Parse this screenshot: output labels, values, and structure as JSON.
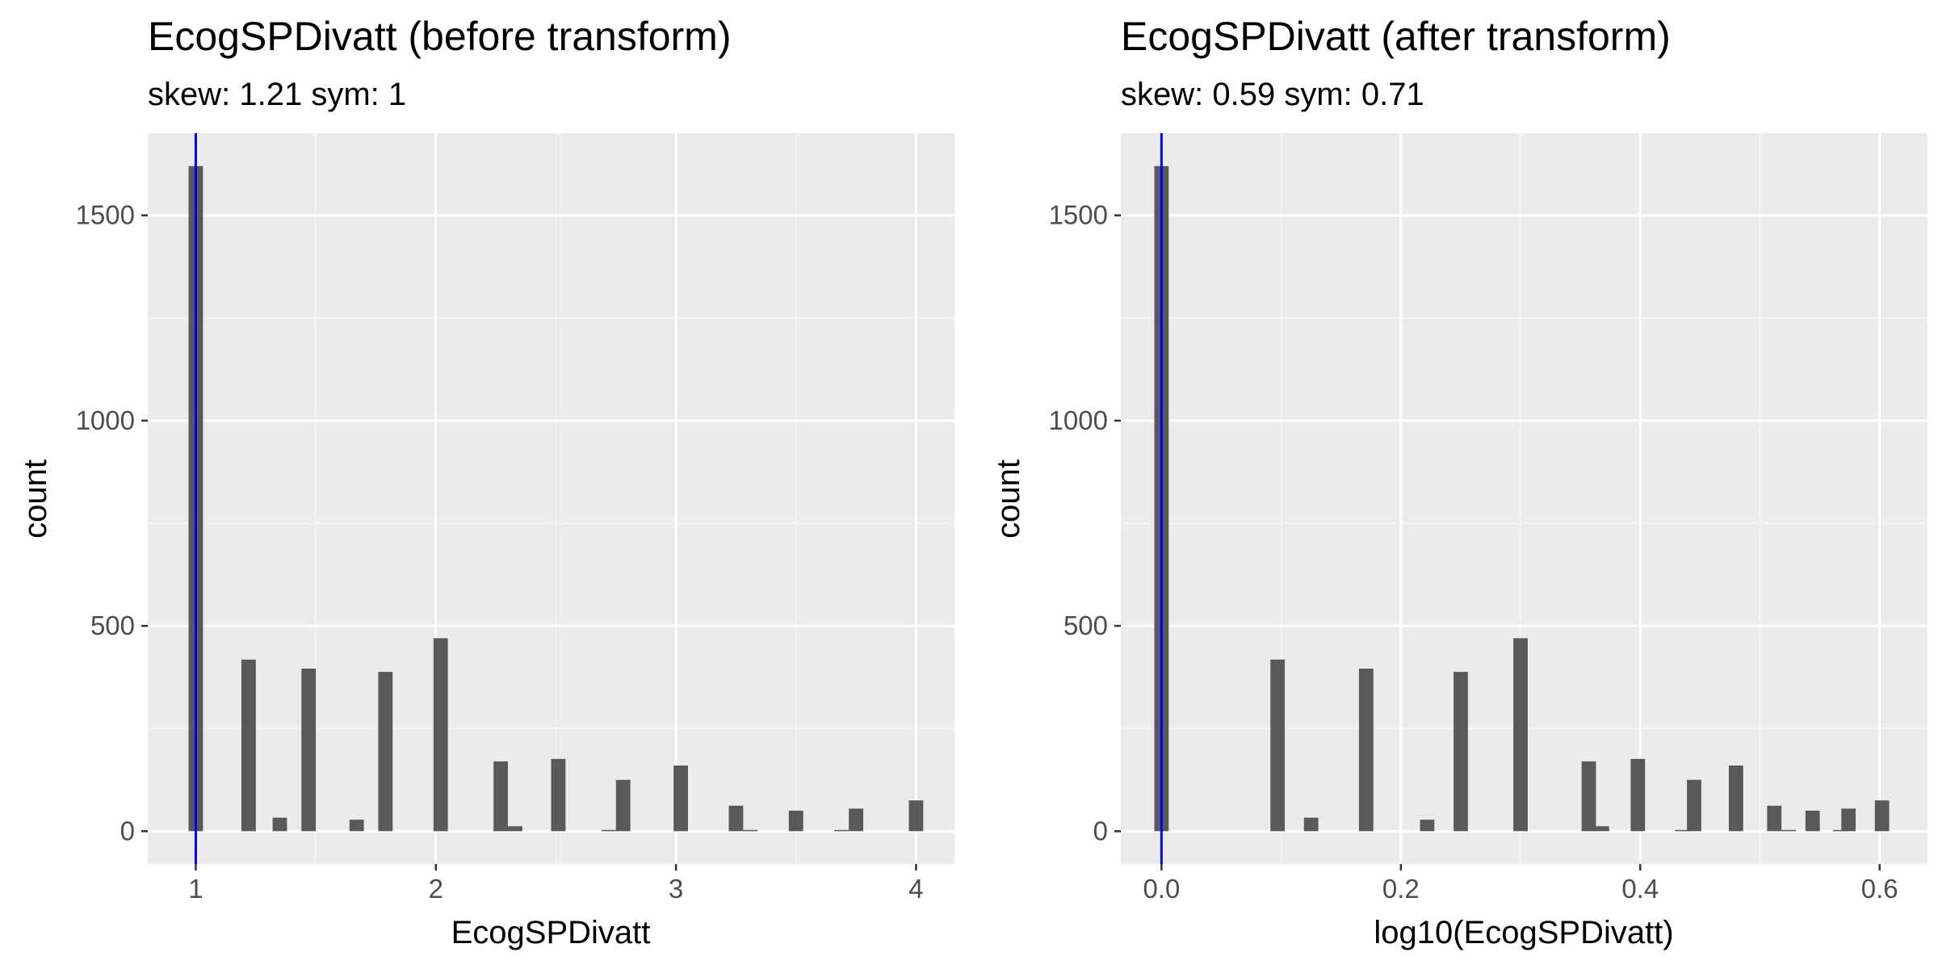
{
  "theme": {
    "panel_bg": "#ebebeb",
    "grid_major": "#ffffff",
    "grid_minor": "#f5f5f5",
    "bar_fill": "#595959",
    "ref_line": "#0000ff",
    "tick_color": "#333333"
  },
  "chart_data": [
    {
      "type": "bar",
      "title": "EcogSPDivatt (before transform)",
      "subtitle": "skew: 1.21 sym: 1",
      "xlabel": "EcogSPDivatt",
      "ylabel": "count",
      "xlim": [
        0.8,
        4.16
      ],
      "ylim": [
        -80,
        1700
      ],
      "xticks": [
        1,
        2,
        3,
        4
      ],
      "xtick_labels": [
        "1",
        "2",
        "3",
        "4"
      ],
      "yticks": [
        0,
        500,
        1000,
        1500
      ],
      "ytick_labels": [
        "0",
        "500",
        "1000",
        "1500"
      ],
      "bar_width": 0.06,
      "bars": [
        {
          "x": 1.0,
          "count": 1620
        },
        {
          "x": 1.22,
          "count": 418
        },
        {
          "x": 1.35,
          "count": 33
        },
        {
          "x": 1.47,
          "count": 396
        },
        {
          "x": 1.67,
          "count": 28
        },
        {
          "x": 1.79,
          "count": 388
        },
        {
          "x": 2.02,
          "count": 470
        },
        {
          "x": 2.27,
          "count": 170
        },
        {
          "x": 2.33,
          "count": 12
        },
        {
          "x": 2.51,
          "count": 176
        },
        {
          "x": 2.72,
          "count": 3
        },
        {
          "x": 2.78,
          "count": 125
        },
        {
          "x": 3.02,
          "count": 160
        },
        {
          "x": 3.25,
          "count": 62
        },
        {
          "x": 3.31,
          "count": 3
        },
        {
          "x": 3.5,
          "count": 50
        },
        {
          "x": 3.69,
          "count": 3
        },
        {
          "x": 3.75,
          "count": 55
        },
        {
          "x": 4.0,
          "count": 75
        }
      ],
      "ref_line_x": 1.0
    },
    {
      "type": "bar",
      "title": "EcogSPDivatt (after transform)",
      "subtitle": "skew: 0.59 sym: 0.71",
      "xlabel": "log10(EcogSPDivatt)",
      "ylabel": "count",
      "xlim": [
        -0.034,
        0.64
      ],
      "ylim": [
        -80,
        1700
      ],
      "xticks": [
        0.0,
        0.2,
        0.4,
        0.6
      ],
      "xtick_labels": [
        "0.0",
        "0.2",
        "0.4",
        "0.6"
      ],
      "yticks": [
        0,
        500,
        1000,
        1500
      ],
      "ytick_labels": [
        "0",
        "500",
        "1000",
        "1500"
      ],
      "bar_width": 0.012,
      "bars": [
        {
          "x": 0.0,
          "count": 1620
        },
        {
          "x": 0.097,
          "count": 418
        },
        {
          "x": 0.125,
          "count": 33
        },
        {
          "x": 0.171,
          "count": 396
        },
        {
          "x": 0.222,
          "count": 28
        },
        {
          "x": 0.25,
          "count": 388
        },
        {
          "x": 0.3,
          "count": 470
        },
        {
          "x": 0.357,
          "count": 170
        },
        {
          "x": 0.368,
          "count": 12
        },
        {
          "x": 0.398,
          "count": 176
        },
        {
          "x": 0.435,
          "count": 3
        },
        {
          "x": 0.445,
          "count": 125
        },
        {
          "x": 0.48,
          "count": 160
        },
        {
          "x": 0.512,
          "count": 62
        },
        {
          "x": 0.524,
          "count": 3
        },
        {
          "x": 0.544,
          "count": 50
        },
        {
          "x": 0.567,
          "count": 3
        },
        {
          "x": 0.574,
          "count": 55
        },
        {
          "x": 0.602,
          "count": 75
        }
      ],
      "ref_line_x": 0.0
    }
  ]
}
